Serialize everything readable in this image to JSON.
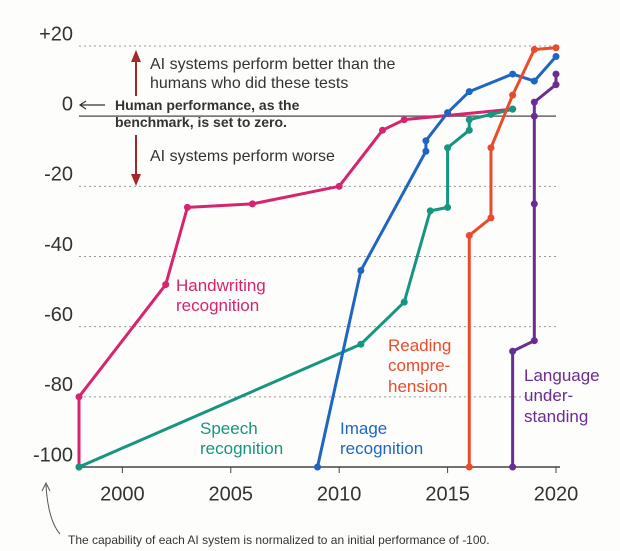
{
  "chart_data": {
    "type": "line",
    "annotations": {
      "better": "AI systems perform better than the humans who did these tests",
      "zero": "Human performance, as the benchmark, is set to zero.",
      "worse": "AI systems perform worse",
      "footnote": "The capability of each AI system is normalized to an initial performance of -100."
    },
    "xlim": [
      1998,
      2020
    ],
    "xticks": [
      2000,
      2005,
      2010,
      2015,
      2020
    ],
    "ylim": [
      -100,
      20
    ],
    "yticks": [
      -100,
      -80,
      -60,
      -40,
      -20,
      0,
      {
        "value": 20,
        "label": "+20"
      }
    ],
    "grid": true,
    "series": [
      {
        "name": "Handwriting recognition",
        "color": "#d6246e",
        "x": [
          1998,
          1998,
          2002,
          2003,
          2006,
          2010,
          2012,
          2013,
          2018
        ],
        "values": [
          -100,
          -80,
          -48,
          -26,
          -25,
          -20,
          -4,
          -1,
          2
        ]
      },
      {
        "name": "Speech recognition",
        "color": "#16957f",
        "x": [
          1998,
          2011,
          2013,
          2014.2,
          2015,
          2015,
          2016,
          2016,
          2017,
          2018
        ],
        "values": [
          -100,
          -65,
          -53,
          -27,
          -26,
          -9,
          -4,
          -1,
          0.5,
          2
        ]
      },
      {
        "name": "Image recognition",
        "color": "#1f66c2",
        "x": [
          2009,
          2011,
          2014,
          2014,
          2015,
          2016,
          2018,
          2019,
          2020
        ],
        "values": [
          -100,
          -44,
          -10,
          -7,
          1,
          7,
          12,
          10,
          17
        ]
      },
      {
        "name": "Reading compre-hension",
        "color": "#ea4b2d",
        "x": [
          2016,
          2016,
          2017,
          2017,
          2018,
          2019,
          2020
        ],
        "values": [
          -100,
          -34,
          -29,
          -9,
          6,
          19,
          19.5
        ]
      },
      {
        "name": "Language under-standing",
        "color": "#6b2c93",
        "x": [
          2018,
          2018,
          2019,
          2019,
          2019,
          2019,
          2020,
          2020
        ],
        "values": [
          -100,
          -67,
          -64,
          -25,
          0,
          4,
          9,
          12
        ]
      }
    ]
  }
}
